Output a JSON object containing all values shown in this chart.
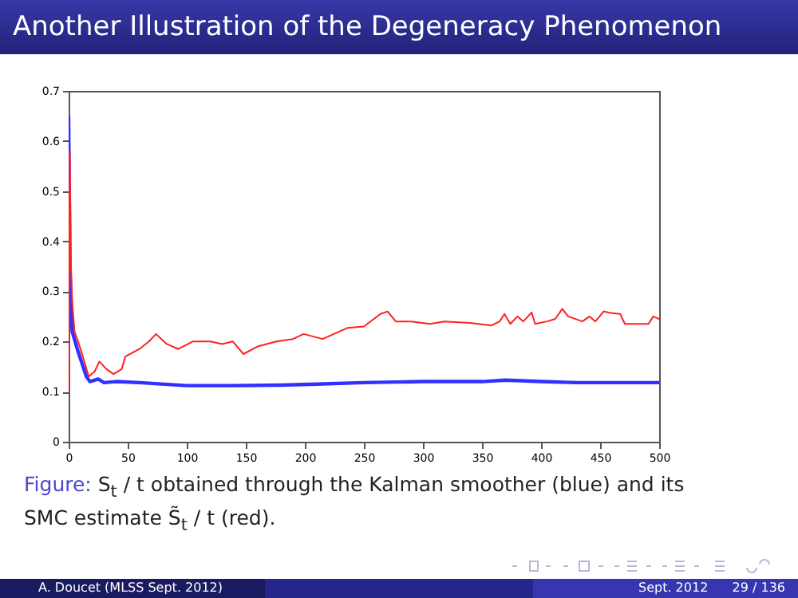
{
  "chart_data": {
    "type": "line",
    "title": "Another Illustration of the Degeneracy Phenomenon",
    "xlim": [
      0,
      500
    ],
    "xticks": [
      0,
      50,
      100,
      150,
      200,
      250,
      300,
      350,
      400,
      450,
      500
    ],
    "ylim": [
      0,
      0.7
    ],
    "yticks": [
      0,
      0.1,
      0.2,
      0.3,
      0.4,
      0.5,
      0.6,
      0.7
    ],
    "grid": false,
    "series": [
      {
        "color": "#3030ff",
        "x": [
          0,
          1,
          3,
          8,
          15,
          18,
          25,
          30,
          40,
          60,
          100,
          140,
          180,
          210,
          250,
          300,
          350,
          370,
          400,
          430,
          500
        ],
        "values": [
          0.65,
          0.35,
          0.22,
          0.18,
          0.13,
          0.12,
          0.125,
          0.118,
          0.12,
          0.118,
          0.112,
          0.112,
          0.113,
          0.115,
          0.118,
          0.12,
          0.12,
          0.123,
          0.12,
          0.118,
          0.118
        ]
      },
      {
        "color": "#ff2020",
        "x": [
          0,
          1,
          2,
          3,
          5,
          8,
          12,
          17,
          22,
          26,
          32,
          38,
          45,
          48,
          60,
          68,
          74,
          83,
          93,
          105,
          120,
          130,
          139,
          148,
          160,
          176,
          190,
          199,
          215,
          236,
          250,
          264,
          270,
          277,
          290,
          306,
          318,
          340,
          358,
          365,
          369,
          374,
          380,
          385,
          392,
          395,
          405,
          412,
          418,
          423,
          435,
          441,
          446,
          453,
          459,
          467,
          471,
          491,
          495,
          500
        ],
        "values": [
          0.1,
          0.58,
          0.35,
          0.28,
          0.22,
          0.2,
          0.17,
          0.13,
          0.14,
          0.16,
          0.145,
          0.135,
          0.145,
          0.17,
          0.185,
          0.2,
          0.215,
          0.195,
          0.185,
          0.2,
          0.2,
          0.195,
          0.2,
          0.175,
          0.19,
          0.2,
          0.205,
          0.215,
          0.205,
          0.227,
          0.23,
          0.255,
          0.26,
          0.24,
          0.24,
          0.235,
          0.24,
          0.237,
          0.232,
          0.24,
          0.255,
          0.235,
          0.25,
          0.24,
          0.258,
          0.235,
          0.24,
          0.245,
          0.265,
          0.25,
          0.24,
          0.25,
          0.24,
          0.26,
          0.257,
          0.255,
          0.235,
          0.235,
          0.25,
          0.245
        ]
      }
    ],
    "annotations": [
      "Figure:",
      "S$_{t}$ / t obtained through the Kalman smoother (blue) and its SMC estimate S̃$_{t}$ / t (red).",
      "A. Doucet (MLSS Sept. 2012)",
      "Sept. 2012",
      "29 / 136"
    ]
  }
}
